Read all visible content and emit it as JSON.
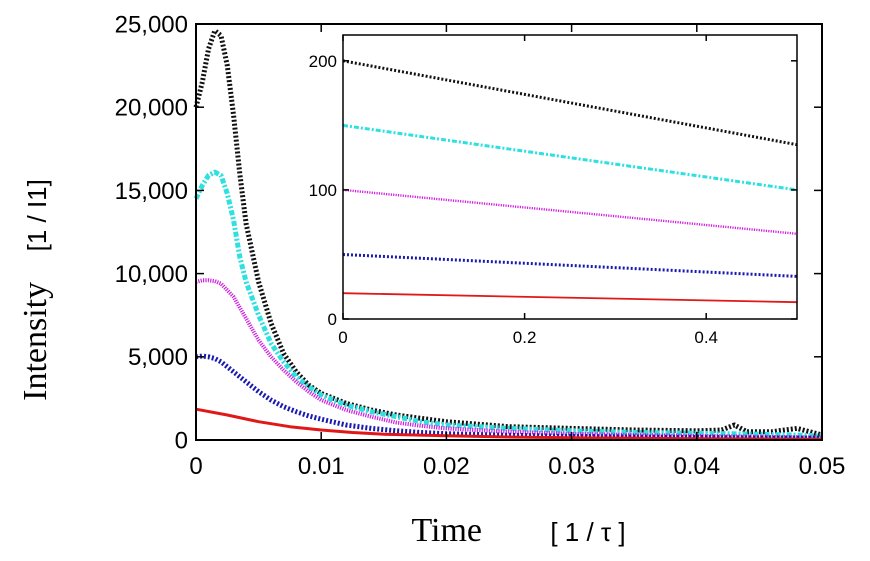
{
  "chart_data": [
    {
      "id": "main",
      "type": "line",
      "title": "",
      "xlabel": "Time",
      "xunit": "[ 1 / τ ]",
      "ylabel": "Intensity",
      "yunit": "[1 / I1]",
      "xlim": [
        0,
        0.05
      ],
      "ylim": [
        0,
        25000
      ],
      "xticks": [
        0,
        0.01,
        0.02,
        0.03,
        0.04,
        0.05
      ],
      "xtick_labels": [
        "0",
        "0.01",
        "0.02",
        "0.03",
        "0.04",
        "0.05"
      ],
      "yticks": [
        0,
        5000,
        10000,
        15000,
        20000,
        25000
      ],
      "ytick_labels": [
        "0",
        "5,000",
        "10,000",
        "15,000",
        "20,000",
        "25,000"
      ],
      "grid": false,
      "legend": "none",
      "series": [
        {
          "color": "#111111",
          "style": "dotted-thick",
          "x": [
            0,
            0.0005,
            0.001,
            0.0015,
            0.002,
            0.0025,
            0.003,
            0.0035,
            0.004,
            0.005,
            0.006,
            0.007,
            0.008,
            0.009,
            0.01,
            0.012,
            0.014,
            0.016,
            0.018,
            0.02,
            0.025,
            0.03,
            0.035,
            0.04,
            0.042,
            0.043,
            0.044,
            0.046,
            0.048,
            0.049,
            0.05
          ],
          "y": [
            20000,
            21500,
            23500,
            24600,
            24300,
            22500,
            19500,
            16000,
            13000,
            9500,
            7000,
            5200,
            4100,
            3300,
            2800,
            2200,
            1800,
            1500,
            1300,
            1100,
            800,
            700,
            600,
            550,
            600,
            900,
            500,
            500,
            700,
            500,
            300
          ]
        },
        {
          "color": "#2ee0e0",
          "style": "dash-dot-thick",
          "x": [
            0,
            0.0005,
            0.001,
            0.0015,
            0.002,
            0.0025,
            0.003,
            0.0035,
            0.004,
            0.005,
            0.006,
            0.007,
            0.008,
            0.009,
            0.01,
            0.012,
            0.014,
            0.016,
            0.018,
            0.02,
            0.025,
            0.03,
            0.035,
            0.04,
            0.045,
            0.05
          ],
          "y": [
            14500,
            15300,
            15900,
            16100,
            15900,
            14800,
            13200,
            11000,
            9500,
            7500,
            5800,
            4700,
            3800,
            3200,
            2700,
            2100,
            1700,
            1400,
            1100,
            900,
            700,
            550,
            450,
            400,
            350,
            250
          ]
        },
        {
          "color": "#d11ee0",
          "style": "dotted-fine",
          "x": [
            0,
            0.0005,
            0.001,
            0.0015,
            0.002,
            0.003,
            0.004,
            0.005,
            0.006,
            0.007,
            0.008,
            0.009,
            0.01,
            0.012,
            0.014,
            0.016,
            0.018,
            0.02,
            0.025,
            0.03,
            0.035,
            0.04,
            0.045,
            0.05
          ],
          "y": [
            9500,
            9600,
            9600,
            9550,
            9400,
            8600,
            7300,
            6000,
            5000,
            4200,
            3500,
            2900,
            2400,
            1800,
            1400,
            1050,
            850,
            700,
            500,
            380,
            300,
            250,
            200,
            150
          ]
        },
        {
          "color": "#1a1ab0",
          "style": "dotted-thick",
          "x": [
            0,
            0.0005,
            0.001,
            0.0015,
            0.002,
            0.003,
            0.004,
            0.005,
            0.006,
            0.007,
            0.008,
            0.009,
            0.01,
            0.012,
            0.014,
            0.016,
            0.018,
            0.02,
            0.025,
            0.03,
            0.035,
            0.04,
            0.045,
            0.05
          ],
          "y": [
            5000,
            5050,
            5000,
            4900,
            4700,
            4100,
            3500,
            2900,
            2400,
            2000,
            1700,
            1450,
            1250,
            900,
            700,
            550,
            450,
            380,
            280,
            220,
            180,
            150,
            120,
            100
          ]
        },
        {
          "color": "#e01818",
          "style": "solid",
          "x": [
            0,
            0.0025,
            0.005,
            0.0075,
            0.01,
            0.0125,
            0.015,
            0.02,
            0.025,
            0.03,
            0.035,
            0.04,
            0.045,
            0.05
          ],
          "y": [
            1850,
            1500,
            1100,
            800,
            600,
            450,
            350,
            250,
            180,
            130,
            100,
            80,
            60,
            50
          ]
        }
      ]
    },
    {
      "id": "inset",
      "type": "line",
      "title": "",
      "xlabel": "",
      "ylabel": "",
      "xlim": [
        0,
        0.5
      ],
      "ylim": [
        0,
        220
      ],
      "xticks": [
        0,
        0.2,
        0.4
      ],
      "xtick_labels": [
        "0",
        "0.2",
        "0.4"
      ],
      "yticks": [
        0,
        100,
        200
      ],
      "ytick_labels": [
        "0",
        "100",
        "200"
      ],
      "grid": false,
      "legend": "none",
      "series": [
        {
          "color": "#111111",
          "style": "dotted-thick",
          "x": [
            0,
            0.5
          ],
          "y": [
            200,
            135
          ]
        },
        {
          "color": "#2ee0e0",
          "style": "dash-dot-thick",
          "x": [
            0,
            0.5
          ],
          "y": [
            150,
            100
          ]
        },
        {
          "color": "#d11ee0",
          "style": "dotted-fine",
          "x": [
            0,
            0.5
          ],
          "y": [
            100,
            66
          ]
        },
        {
          "color": "#1a1ab0",
          "style": "dotted-thick",
          "x": [
            0,
            0.5
          ],
          "y": [
            50,
            33
          ]
        },
        {
          "color": "#e01818",
          "style": "solid",
          "x": [
            0,
            0.5
          ],
          "y": [
            20,
            13
          ]
        }
      ]
    }
  ]
}
